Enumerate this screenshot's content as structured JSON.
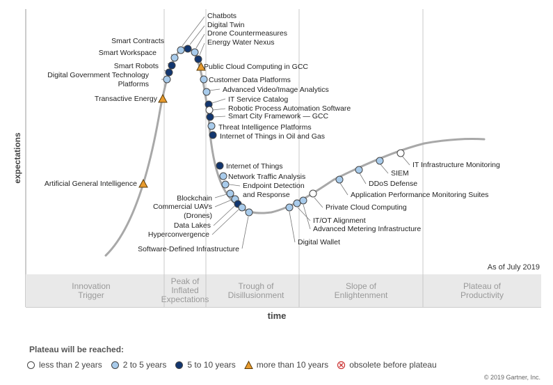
{
  "chart_data": {
    "type": "scatter",
    "title": "",
    "xlabel": "time",
    "ylabel": "expectations",
    "as_of": "As of July 2019",
    "phases": [
      [
        "Innovation",
        "Trigger"
      ],
      [
        "Peak of",
        "Inflated",
        "Expectations"
      ],
      [
        "Trough of",
        "Disillusionment"
      ],
      [
        "Slope of",
        "Enlightenment"
      ],
      [
        "Plateau of",
        "Productivity"
      ]
    ],
    "colors": {
      "less_than_2": "#ffffff",
      "2_to_5": "#a8cbeb",
      "5_to_10": "#12366f",
      "more_than_10": "#e89b2e",
      "obsolete": "#cc3333",
      "curve": "#a8a8a8"
    },
    "legend_items": [
      {
        "key": "less_than_2",
        "label": "less than 2 years",
        "shape": "circle"
      },
      {
        "key": "2_to_5",
        "label": "2 to 5 years",
        "shape": "circle"
      },
      {
        "key": "5_to_10",
        "label": "5 to 10 years",
        "shape": "circle"
      },
      {
        "key": "more_than_10",
        "label": "more than 10 years",
        "shape": "triangle"
      },
      {
        "key": "obsolete",
        "label": "obsolete before plateau",
        "shape": "obsolete"
      }
    ],
    "technologies": [
      {
        "name": "Artificial General Intelligence",
        "plateau": "more_than_10"
      },
      {
        "name": "Transactive Energy",
        "plateau": "more_than_10"
      },
      {
        "name": "Digital Government Technology Platforms",
        "plateau": "2_to_5"
      },
      {
        "name": "Smart Robots",
        "plateau": "5_to_10"
      },
      {
        "name": "Smart Workspace",
        "plateau": "5_to_10"
      },
      {
        "name": "Smart Contracts",
        "plateau": "2_to_5"
      },
      {
        "name": "Chatbots",
        "plateau": "2_to_5"
      },
      {
        "name": "Digital Twin",
        "plateau": "5_to_10"
      },
      {
        "name": "Drone Countermeasures",
        "plateau": "2_to_5"
      },
      {
        "name": "Energy Water Nexus",
        "plateau": "5_to_10"
      },
      {
        "name": "Public Cloud Computing in GCC",
        "plateau": "more_than_10"
      },
      {
        "name": "Customer Data Platforms",
        "plateau": "2_to_5"
      },
      {
        "name": "Advanced Video/Image Analytics",
        "plateau": "2_to_5"
      },
      {
        "name": "IT Service Catalog",
        "plateau": "5_to_10"
      },
      {
        "name": "Robotic Process Automation Software",
        "plateau": "less_than_2"
      },
      {
        "name": "Smart City Framework — GCC",
        "plateau": "5_to_10"
      },
      {
        "name": "Threat Intelligence Platforms",
        "plateau": "2_to_5"
      },
      {
        "name": "Internet of Things in Oil and Gas",
        "plateau": "5_to_10"
      },
      {
        "name": "Internet of Things",
        "plateau": "5_to_10"
      },
      {
        "name": "Network Traffic Analysis",
        "plateau": "2_to_5"
      },
      {
        "name": "Endpoint Detection and Response",
        "plateau": "2_to_5"
      },
      {
        "name": "Blockchain",
        "plateau": "2_to_5"
      },
      {
        "name": "Commercial UAVs (Drones)",
        "plateau": "2_to_5"
      },
      {
        "name": "Data Lakes",
        "plateau": "5_to_10"
      },
      {
        "name": "Hyperconvergence",
        "plateau": "2_to_5"
      },
      {
        "name": "Software-Defined Infrastructure",
        "plateau": "2_to_5"
      },
      {
        "name": "Digital Wallet",
        "plateau": "2_to_5"
      },
      {
        "name": "IT/OT Alignment",
        "plateau": "2_to_5"
      },
      {
        "name": "Advanced Metering Infrastructure",
        "plateau": "2_to_5"
      },
      {
        "name": "Private Cloud Computing",
        "plateau": "less_than_2"
      },
      {
        "name": "Application Performance Monitoring Suites",
        "plateau": "2_to_5"
      },
      {
        "name": "DDoS Defense",
        "plateau": "2_to_5"
      },
      {
        "name": "SIEM",
        "plateau": "2_to_5"
      },
      {
        "name": "IT Infrastructure Monitoring",
        "plateau": "less_than_2"
      }
    ]
  },
  "legend": {
    "title": "Plateau will be reached:"
  },
  "footer": {
    "copyright": "© 2019 Gartner, Inc."
  }
}
